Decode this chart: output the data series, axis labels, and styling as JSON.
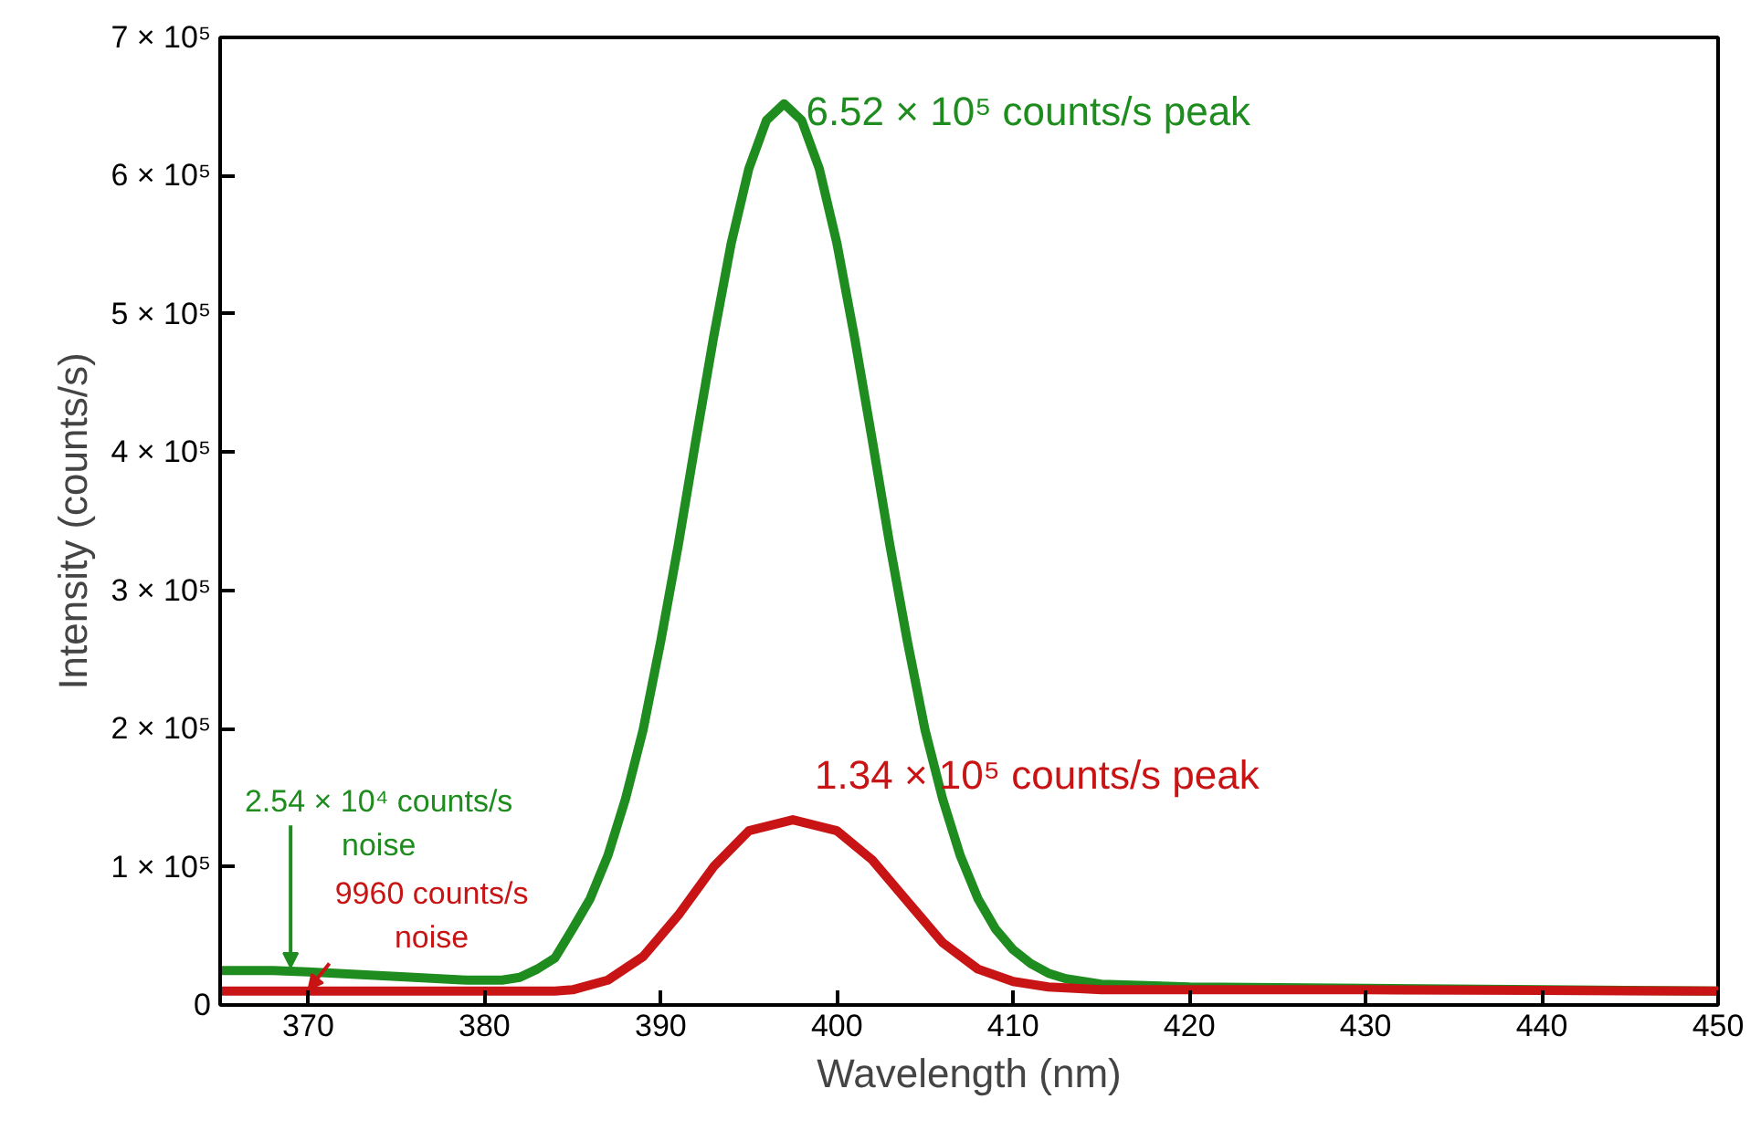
{
  "chart_data": {
    "type": "line",
    "xlabel": "Wavelength (nm)",
    "ylabel": "Intensity (counts/s)",
    "xlim": [
      365,
      450
    ],
    "xticks": [
      370,
      380,
      390,
      400,
      410,
      420,
      430,
      440,
      450
    ],
    "ylim": [
      0,
      700000
    ],
    "yticks": [
      0,
      {
        "value": 100000,
        "label": "1 × 10⁵"
      },
      {
        "value": 200000,
        "label": "2 × 10⁵"
      },
      {
        "value": 300000,
        "label": "3 × 10⁵"
      },
      {
        "value": 400000,
        "label": "4 × 10⁵"
      },
      {
        "value": 500000,
        "label": "5 × 10⁵"
      },
      {
        "value": 600000,
        "label": "6 × 10⁵"
      },
      {
        "value": 700000,
        "label": "7 × 10⁵"
      }
    ],
    "grid": false,
    "marker": "none",
    "line_style": "solid",
    "series": [
      {
        "color": "#1e8c1e",
        "x": [
          365,
          368,
          370,
          373,
          376,
          379,
          381,
          382,
          383,
          384,
          385,
          386,
          387,
          388,
          389,
          390,
          391,
          392,
          393,
          394,
          395,
          396,
          397,
          398,
          399,
          400,
          401,
          402,
          403,
          404,
          405,
          406,
          407,
          408,
          409,
          410,
          411,
          412,
          413,
          415,
          420,
          430,
          440,
          450
        ],
        "values": [
          25000,
          25000,
          24000,
          22000,
          20000,
          18000,
          18000,
          20000,
          26000,
          34000,
          55000,
          77000,
          108000,
          149000,
          199000,
          263000,
          333000,
          409000,
          483000,
          551000,
          605000,
          640000,
          652000,
          640000,
          605000,
          551000,
          483000,
          409000,
          333000,
          263000,
          199000,
          149000,
          108000,
          77000,
          55000,
          40000,
          30000,
          23000,
          19000,
          15000,
          13000,
          12000,
          11000,
          10000
        ]
      },
      {
        "color": "#c81414",
        "x": [
          365,
          370,
          375,
          380,
          384,
          385,
          387,
          389,
          391,
          393,
          395,
          397.5,
          400,
          402,
          404,
          406,
          408,
          410,
          412,
          415,
          420,
          430,
          440,
          450
        ],
        "values": [
          10000,
          10000,
          10000,
          10000,
          10000,
          11000,
          18000,
          35000,
          65000,
          100000,
          126000,
          134000,
          126000,
          105000,
          75000,
          45000,
          26000,
          17000,
          13000,
          11000,
          11000,
          11000,
          10500,
          10000
        ]
      }
    ],
    "annotations": [
      {
        "text": "6.52 × 10⁵ counts/s peak",
        "x": 397,
        "y": 652000
      },
      {
        "text": "1.34 × 10⁵ counts/s peak",
        "x": 397.5,
        "y": 134000
      },
      {
        "text": "2.54 × 10⁴ counts/s noise",
        "x": 369,
        "y": 25000
      },
      {
        "text": "9960 counts/s noise",
        "x": 370,
        "y": 10000
      }
    ]
  }
}
